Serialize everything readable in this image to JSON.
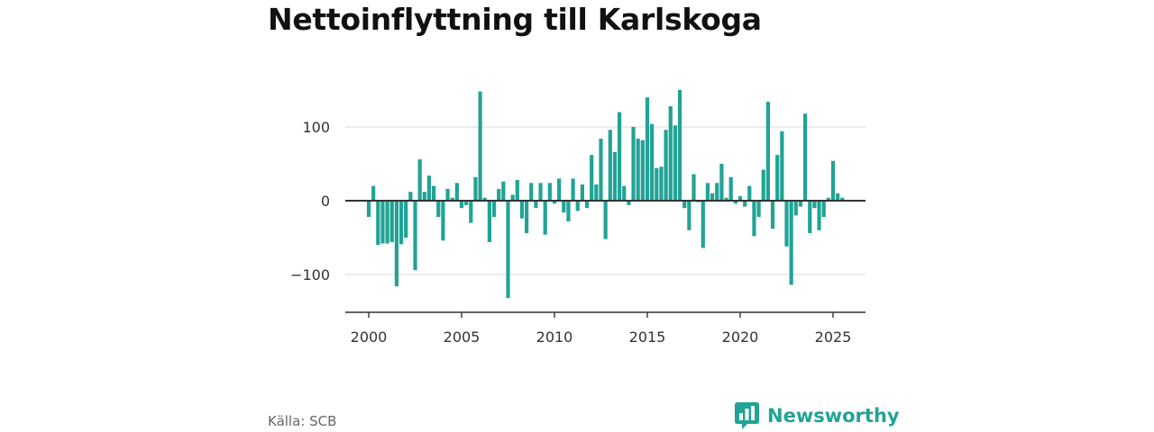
{
  "title": "Nettoinflyttning till Karlskoga",
  "source": "Källa: SCB",
  "brand": {
    "name": "Newsworthy",
    "icon": "bar-chart-speech-bubble-icon",
    "color": "#21a395"
  },
  "chart_data": {
    "type": "bar",
    "title": "Nettoinflyttning till Karlskoga",
    "xlabel": "",
    "ylabel": "",
    "x_start": 2000,
    "periods_per_year": 4,
    "values": [
      -22,
      20,
      -60,
      -58,
      -58,
      -56,
      -116,
      -59,
      -50,
      12,
      -94,
      56,
      12,
      34,
      20,
      -22,
      -54,
      16,
      4,
      24,
      -10,
      -6,
      -30,
      32,
      148,
      4,
      -56,
      -22,
      16,
      26,
      -132,
      8,
      28,
      -24,
      -44,
      24,
      -10,
      24,
      -46,
      24,
      -4,
      30,
      -16,
      -28,
      30,
      -14,
      22,
      -10,
      62,
      22,
      84,
      -52,
      96,
      66,
      120,
      20,
      -6,
      100,
      84,
      82,
      140,
      104,
      44,
      46,
      96,
      128,
      102,
      150,
      -10,
      -40,
      36,
      -2,
      -64,
      24,
      10,
      24,
      50,
      4,
      32,
      -4,
      6,
      -8,
      20,
      -48,
      -22,
      42,
      134,
      -38,
      62,
      94,
      -62,
      -114,
      -20,
      -8,
      118,
      -44,
      -10,
      -40,
      -22,
      4,
      54,
      10,
      4
    ],
    "ylim": [
      -150,
      160
    ],
    "y_ticks": [
      100,
      0,
      -100
    ],
    "y_tick_labels": [
      "100",
      "0",
      "−100"
    ],
    "x_ticks": [
      2000,
      2005,
      2010,
      2015,
      2020,
      2025
    ],
    "x_tick_labels": [
      "2000",
      "2005",
      "2010",
      "2015",
      "2020",
      "2025"
    ],
    "bar_color": "#21a395",
    "grid": true,
    "legend": "none"
  }
}
